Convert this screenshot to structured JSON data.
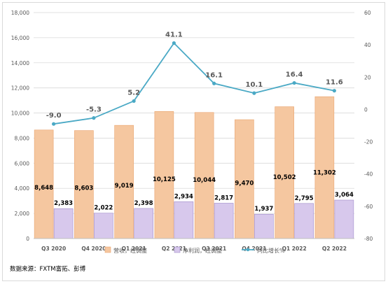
{
  "chart_data": {
    "type": "bar",
    "categories": [
      "Q3 2020",
      "Q4 2020",
      "Q1 2021",
      "Q2 2021",
      "Q3 2021",
      "Q4 2021",
      "Q1 2022",
      "Q2 2022"
    ],
    "series": [
      {
        "name": "营收，经调整",
        "kind": "bar",
        "axis": "left",
        "color": "#f5c7a0",
        "values": [
          8648,
          8603,
          9019,
          10125,
          10044,
          9470,
          10502,
          11302
        ],
        "labels": [
          "8,648",
          "8,603",
          "9,019",
          "10,125",
          "10,044",
          "9,470",
          "10,502",
          "11,302"
        ]
      },
      {
        "name": "净利润，经调整",
        "kind": "bar",
        "axis": "left",
        "color": "#d7c8ec",
        "values": [
          2383,
          2022,
          2398,
          2934,
          2817,
          1937,
          2795,
          3064
        ],
        "labels": [
          "2,383",
          "2,022",
          "2,398",
          "2,934",
          "2,817",
          "1,937",
          "2,795",
          "3,064"
        ]
      },
      {
        "name": "同比增长%",
        "kind": "line",
        "axis": "right",
        "color": "#4aa9c5",
        "values": [
          -9.0,
          -5.3,
          5.2,
          41.1,
          16.1,
          10.1,
          16.4,
          11.6
        ],
        "labels": [
          "-9.0",
          "-5.3",
          "5.2",
          "41.1",
          "16.1",
          "10.1",
          "16.4",
          "11.6"
        ]
      }
    ],
    "y_left": {
      "ylim": [
        0,
        18000
      ],
      "ticks": [
        0,
        2000,
        4000,
        6000,
        8000,
        10000,
        12000,
        14000,
        16000,
        18000
      ],
      "tick_labels": [
        "0",
        "2,000",
        "4,000",
        "6,000",
        "8,000",
        "10,000",
        "12,000",
        "14,000",
        "16,000",
        "18,000"
      ]
    },
    "y_right": {
      "ylim": [
        -80,
        60
      ],
      "ticks": [
        -80,
        -60,
        -40,
        -20,
        0,
        20,
        40,
        60
      ],
      "tick_labels": [
        "-80",
        "-60",
        "-40",
        "-20",
        "0",
        "20",
        "40",
        "60"
      ]
    },
    "grid": true,
    "legend": "bottom"
  },
  "source": "数据来源：FXTM富拓、彭博"
}
